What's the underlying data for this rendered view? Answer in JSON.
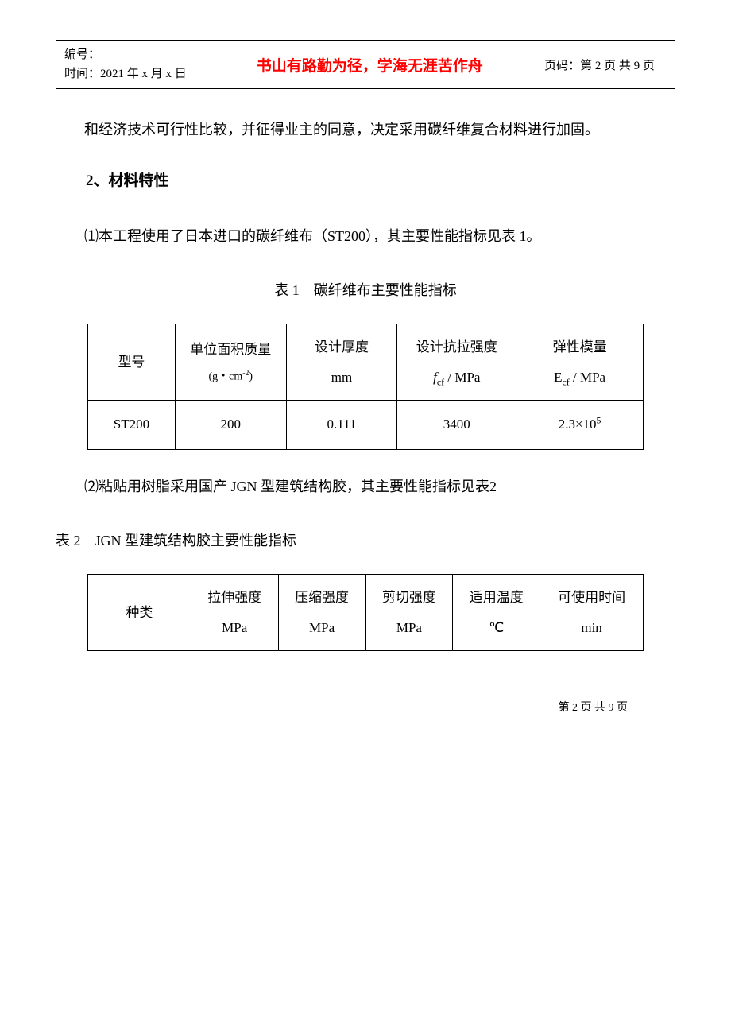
{
  "header": {
    "id_label": "编号：",
    "date_label": "时间：2021 年 x 月 x 日",
    "motto": "书山有路勤为径，学海无涯苦作舟",
    "page_label": "页码：第 2 页 共 9 页"
  },
  "body": {
    "para1": "和经济技术可行性比较，并征得业主的同意，决定采用碳纤维复合材料进行加固。",
    "section_title": "2、材料特性",
    "para2": "⑴本工程使用了日本进口的碳纤维布（ST200），其主要性能指标见表 1。",
    "table1": {
      "caption": "表 1　碳纤维布主要性能指标",
      "headers": {
        "c1": "型号",
        "c2_line1": "单位面积质量",
        "c2_line2_html": "(g・cm<sup>-2</sup>)",
        "c3_line1": "设计厚度",
        "c3_line2": "mm",
        "c4_line1": "设计抗拉强度",
        "c4_line2_html": "<span class=\"italic\">f</span><sub>cf</sub> / MPa",
        "c5_line1": "弹性模量",
        "c5_line2_html": "E<sub>cf</sub> / MPa"
      },
      "row": {
        "c1": "ST200",
        "c2": "200",
        "c3": "0.111",
        "c4": "3400",
        "c5_html": "2.3×10<sup>5</sup>"
      }
    },
    "para3": "⑵粘贴用树脂采用国产 JGN 型建筑结构胶，其主要性能指标见表2",
    "table2": {
      "caption": "表 2　JGN 型建筑结构胶主要性能指标",
      "headers": {
        "c1": "种类",
        "c2_line1": "拉伸强度",
        "c2_line2": "MPa",
        "c3_line1": "压缩强度",
        "c3_line2": "MPa",
        "c4_line1": "剪切强度",
        "c4_line2": "MPa",
        "c5_line1": "适用温度",
        "c5_line2": "℃",
        "c6_line1": "可使用时间",
        "c6_line2": "min"
      }
    }
  },
  "footer": {
    "text": "第 2 页 共 9 页"
  }
}
